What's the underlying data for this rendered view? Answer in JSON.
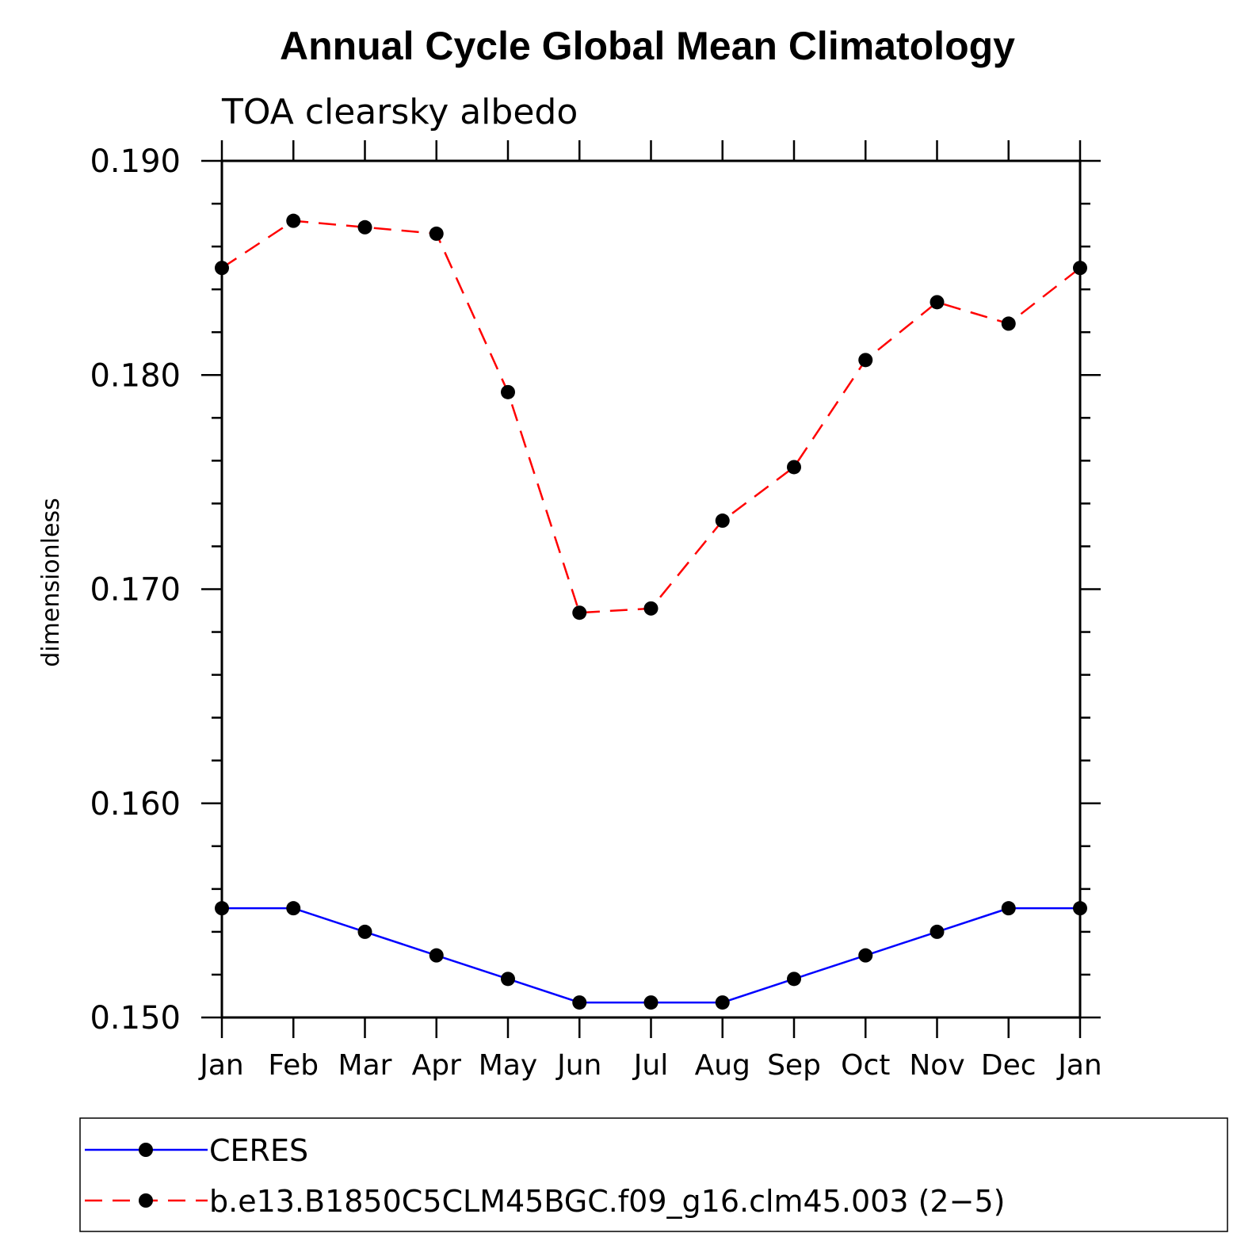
{
  "chart_data": {
    "type": "line",
    "title": "Annual Cycle Global Mean Climatology",
    "subtitle": "TOA clearsky albedo",
    "xlabel": "",
    "ylabel": "dimensionless",
    "categories": [
      "Jan",
      "Feb",
      "Mar",
      "Apr",
      "May",
      "Jun",
      "Jul",
      "Aug",
      "Sep",
      "Oct",
      "Nov",
      "Dec",
      "Jan"
    ],
    "ylim": [
      0.15,
      0.19
    ],
    "yticks": [
      "0.150",
      "0.160",
      "0.170",
      "0.180",
      "0.190"
    ],
    "ytick_values": [
      0.15,
      0.16,
      0.17,
      0.18,
      0.19
    ],
    "y_minor_step": 0.002,
    "grid": false,
    "legend_position": "bottom",
    "series": [
      {
        "name": "CERES",
        "color": "#0000ff",
        "line_style": "solid",
        "marker": "filled-circle",
        "values": [
          0.1551,
          0.1551,
          0.154,
          0.1529,
          0.1518,
          0.1507,
          0.1507,
          0.1507,
          0.1518,
          0.1529,
          0.154,
          0.1551,
          0.1551
        ]
      },
      {
        "name": "b.e13.B1850C5CLM45BGC.f09_g16.clm45.003 (2−5)",
        "color": "#ff0000",
        "line_style": "dashed",
        "marker": "filled-circle",
        "values": [
          0.185,
          0.1872,
          0.1869,
          0.1866,
          0.1792,
          0.1689,
          0.1691,
          0.1732,
          0.1757,
          0.1807,
          0.1834,
          0.1824,
          0.185
        ]
      }
    ],
    "marker_color": "#000000",
    "axis_color": "#000000"
  }
}
